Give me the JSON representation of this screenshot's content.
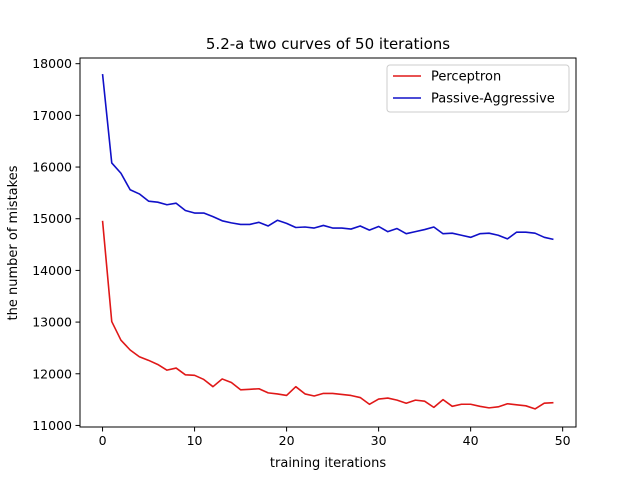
{
  "chart_data": {
    "type": "line",
    "title": "5.2-a two curves of 50 iterations",
    "xlabel": "training iterations",
    "ylabel": "the number of mistakes",
    "xlim": [
      -2.45,
      51.45
    ],
    "ylim": [
      10970,
      18110
    ],
    "xticks": [
      0,
      10,
      20,
      30,
      40,
      50
    ],
    "yticks": [
      11000,
      12000,
      13000,
      14000,
      15000,
      16000,
      17000,
      18000
    ],
    "grid": false,
    "legend_position": "top-right",
    "x": [
      0,
      1,
      2,
      3,
      4,
      5,
      6,
      7,
      8,
      9,
      10,
      11,
      12,
      13,
      14,
      15,
      16,
      17,
      18,
      19,
      20,
      21,
      22,
      23,
      24,
      25,
      26,
      27,
      28,
      29,
      30,
      31,
      32,
      33,
      34,
      35,
      36,
      37,
      38,
      39,
      40,
      41,
      42,
      43,
      44,
      45,
      46,
      47,
      48,
      49
    ],
    "series": [
      {
        "name": "Perceptron",
        "color": "#e01818",
        "values": [
          14960,
          13010,
          12650,
          12460,
          12330,
          12260,
          12180,
          12070,
          12110,
          11980,
          11970,
          11890,
          11750,
          11900,
          11830,
          11690,
          11700,
          11710,
          11630,
          11610,
          11580,
          11750,
          11610,
          11570,
          11620,
          11620,
          11600,
          11580,
          11540,
          11410,
          11510,
          11530,
          11490,
          11430,
          11490,
          11470,
          11350,
          11500,
          11370,
          11410,
          11410,
          11370,
          11340,
          11360,
          11420,
          11400,
          11380,
          11320,
          11430,
          11440
        ]
      },
      {
        "name": "Passive-Aggressive",
        "color": "#1010c8",
        "values": [
          17800,
          16080,
          15880,
          15560,
          15480,
          15340,
          15320,
          15270,
          15300,
          15160,
          15110,
          15110,
          15040,
          14960,
          14920,
          14890,
          14890,
          14930,
          14860,
          14970,
          14910,
          14830,
          14840,
          14820,
          14870,
          14820,
          14820,
          14800,
          14860,
          14780,
          14850,
          14750,
          14810,
          14710,
          14750,
          14790,
          14840,
          14710,
          14720,
          14680,
          14640,
          14710,
          14720,
          14680,
          14610,
          14740,
          14740,
          14720,
          14640,
          14600
        ]
      }
    ]
  }
}
